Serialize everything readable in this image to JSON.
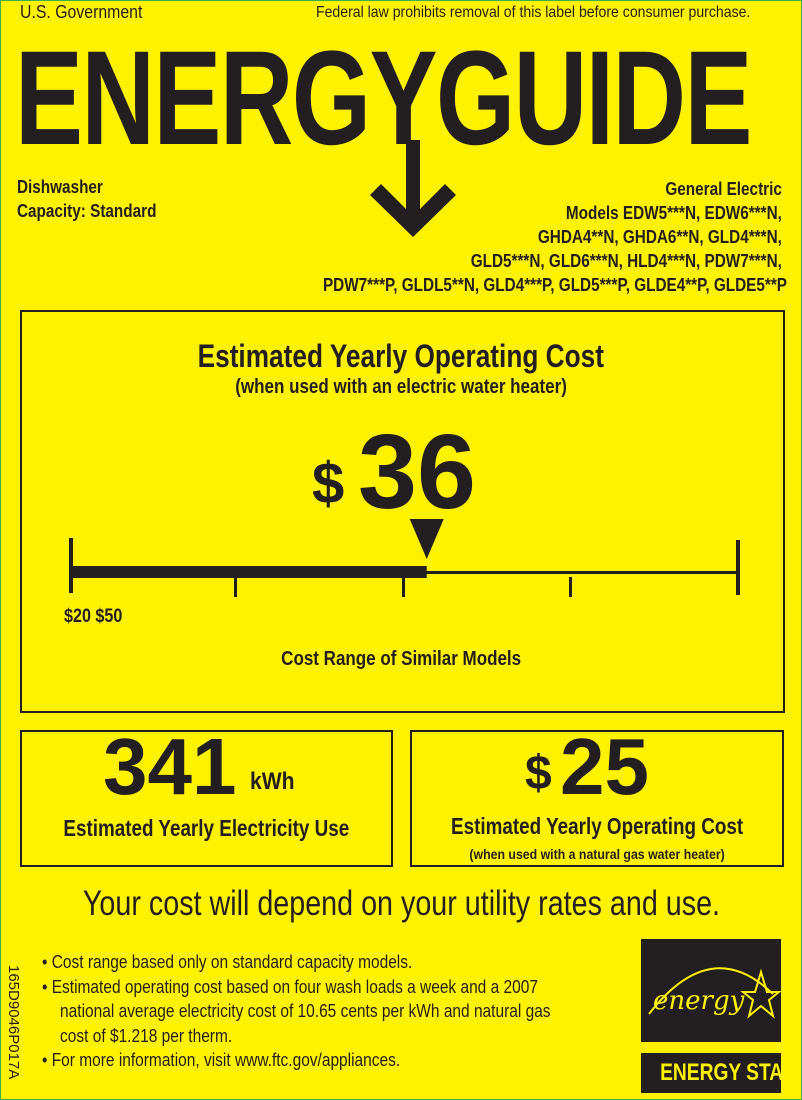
{
  "header": {
    "issuer": "U.S. Government",
    "notice": "Federal law prohibits removal of this label before consumer purchase.",
    "title": "ENERGYGUIDE"
  },
  "product": {
    "type": "Dishwasher",
    "capacity": "Capacity: Standard",
    "manufacturer": "General Electric",
    "model_lines": [
      "Models EDW5***N, EDW6***N,",
      "GHDA4**N, GHDA6**N, GLD4***N,",
      "GLD5***N, GLD6***N, HLD4***N, PDW7***N,",
      "PDW7***P, GLDL5**N, GLD4***P, GLD5***P, GLDE4**P, GLDE5**P"
    ]
  },
  "main_cost": {
    "title": "Estimated Yearly Operating Cost",
    "subtitle": "(when used with an electric water heater)",
    "currency": "$",
    "value": "36",
    "range_labels": "$20 $50",
    "range_min": 20,
    "range_max": 50,
    "marker_value": 36,
    "range_caption": "Cost Range of Similar Models"
  },
  "electricity": {
    "value": "341",
    "unit": "kWh",
    "label": "Estimated Yearly Electricity Use"
  },
  "gas_cost": {
    "currency": "$",
    "value": "25",
    "label": "Estimated Yearly Operating Cost",
    "sublabel": "(when used with a natural gas water heater)"
  },
  "disclaimer": "Your cost will depend on your utility rates and use.",
  "notes": [
    "Cost range based only on standard capacity models.",
    "Estimated operating cost based on four wash loads a week and a 2007",
    "national average electricity cost of 10.65 cents per kWh and natural gas",
    "cost of $1.218 per therm.",
    "For more information, visit www.ftc.gov/appliances."
  ],
  "side_code": "165D9046P017A",
  "logo": {
    "script": "energy",
    "label": "ENERGY STAR"
  },
  "colors": {
    "background": "#fff200",
    "ink": "#231f20",
    "border": "#3fae49"
  }
}
